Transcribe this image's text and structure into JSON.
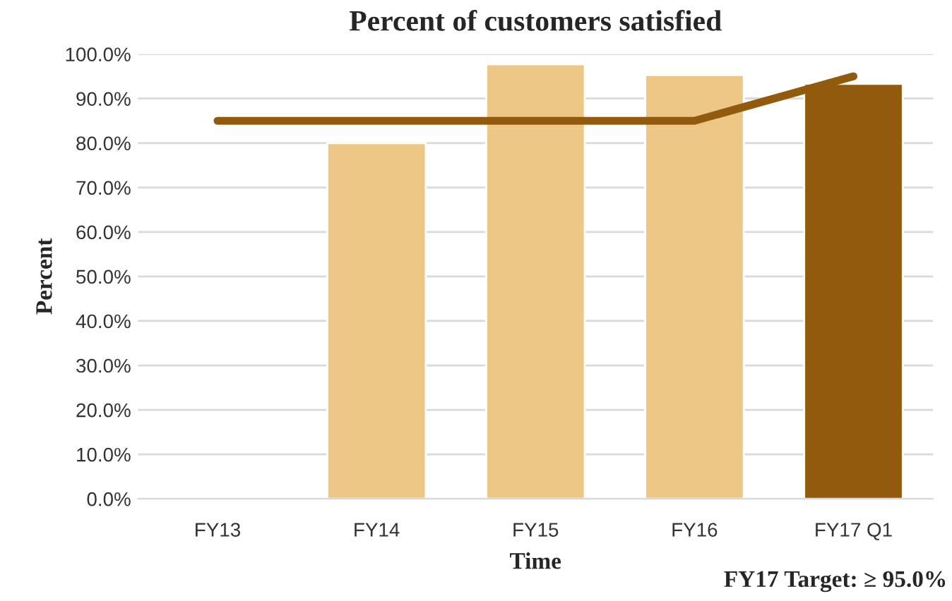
{
  "chart_data": {
    "type": "bar",
    "title": "Percent of customers satisfied",
    "xlabel": "Time",
    "ylabel": "Percent",
    "categories": [
      "FY13",
      "FY14",
      "FY15",
      "FY16",
      "FY17 Q1"
    ],
    "series": [
      {
        "values": [
          null,
          80.0,
          97.7,
          95.3,
          93.3
        ],
        "colors": [
          "#edc786",
          "#edc786",
          "#edc786",
          "#edc786",
          "#925a0d"
        ]
      },
      {
        "type": "line",
        "color": "#925a0d",
        "values": [
          85.0,
          85.0,
          85.0,
          85.0,
          95.0
        ]
      }
    ],
    "ylim": [
      0,
      100
    ],
    "yticks": [
      {
        "value": 0,
        "label": "0.0%"
      },
      {
        "value": 10,
        "label": "10.0%"
      },
      {
        "value": 20,
        "label": "20.0%"
      },
      {
        "value": 30,
        "label": "30.0%"
      },
      {
        "value": 40,
        "label": "40.0%"
      },
      {
        "value": 50,
        "label": "50.0%"
      },
      {
        "value": 60,
        "label": "60.0%"
      },
      {
        "value": 70,
        "label": "70.0%"
      },
      {
        "value": 80,
        "label": "80.0%"
      },
      {
        "value": 90,
        "label": "90.0%"
      },
      {
        "value": 100,
        "label": "100.0%"
      }
    ],
    "grid": "y",
    "annotations": [
      "FY17 Target: ≥ 95.0%"
    ]
  }
}
